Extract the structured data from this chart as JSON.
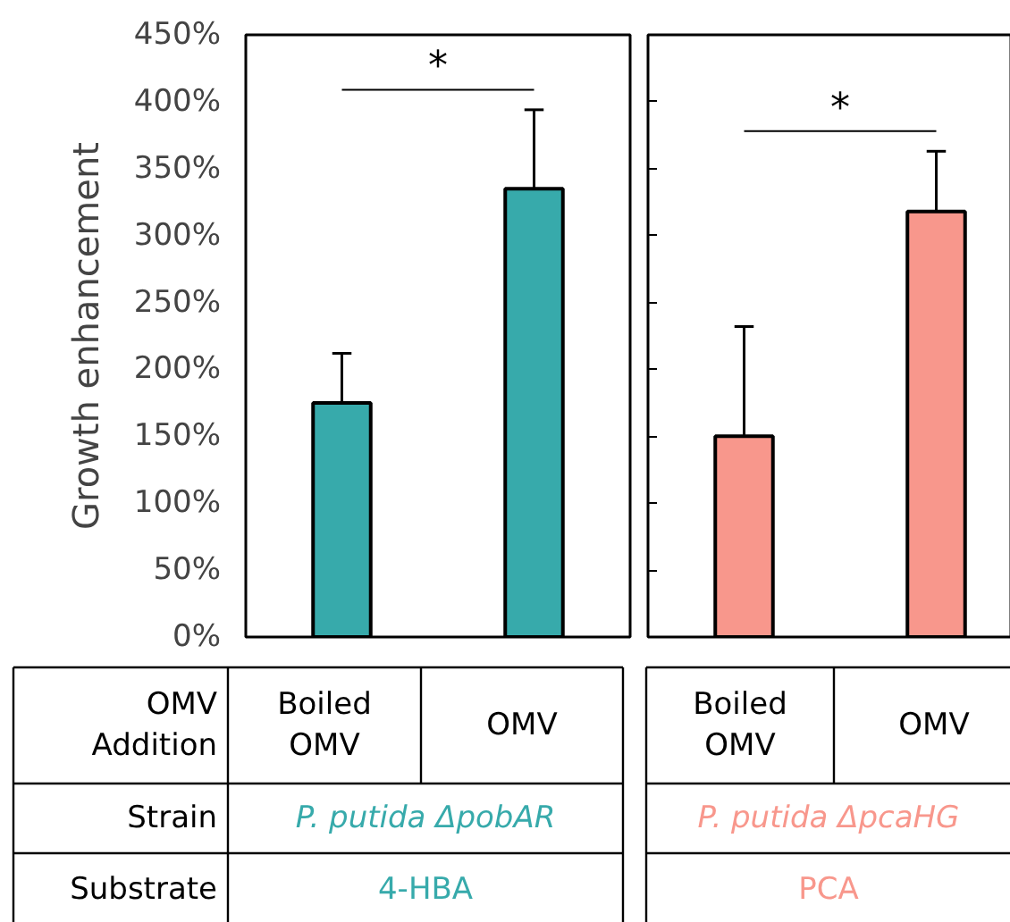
{
  "chart_data": [
    {
      "type": "bar",
      "ylabel": "Growth enhancement",
      "categories": [
        "Boiled OMV",
        "OMV"
      ],
      "values": [
        175,
        335
      ],
      "errors": [
        37,
        59
      ],
      "color": "#37aaab",
      "ylim": [
        0,
        450
      ],
      "yticks": [
        {
          "value": 0,
          "label": "0%"
        },
        {
          "value": 50,
          "label": "50%"
        },
        {
          "value": 100,
          "label": "100%"
        },
        {
          "value": 150,
          "label": "150%"
        },
        {
          "value": 200,
          "label": "200%"
        },
        {
          "value": 250,
          "label": "250%"
        },
        {
          "value": 300,
          "label": "300%"
        },
        {
          "value": 350,
          "label": "350%"
        },
        {
          "value": 400,
          "label": "400%"
        },
        {
          "value": 450,
          "label": "450%"
        }
      ],
      "annotations": [
        "*",
        "OMV Addition",
        "Strain",
        "Substrate",
        "P. putida ΔpobAR",
        "4-HBA"
      ]
    },
    {
      "type": "bar",
      "categories": [
        "Boiled OMV",
        "OMV"
      ],
      "values": [
        150,
        318
      ],
      "errors": [
        82,
        45
      ],
      "color": "#f8978c",
      "ylim": [
        0,
        450
      ],
      "yticks": [
        {
          "value": 0,
          "label": null
        },
        {
          "value": 50,
          "label": null
        },
        {
          "value": 100,
          "label": null
        },
        {
          "value": 150,
          "label": null
        },
        {
          "value": 200,
          "label": null
        },
        {
          "value": 250,
          "label": null
        },
        {
          "value": 300,
          "label": null
        },
        {
          "value": 350,
          "label": null
        },
        {
          "value": 400,
          "label": null
        },
        {
          "value": 450,
          "label": null
        }
      ],
      "tick_labels": "x",
      "annotations": [
        "*",
        "P. putida ΔpcaHG",
        "PCA"
      ]
    }
  ]
}
